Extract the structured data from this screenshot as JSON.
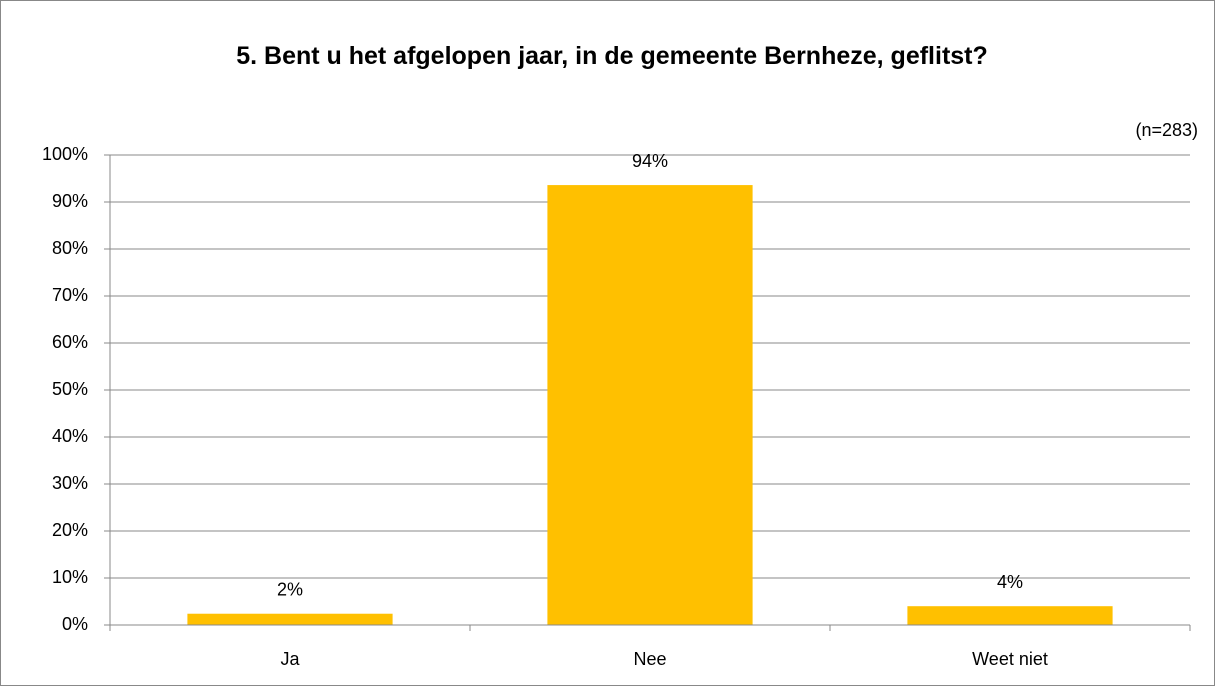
{
  "chart_data": {
    "type": "bar",
    "title": "5. Bent u het afgelopen jaar, in de gemeente Bernheze, geflitst?",
    "annotation": "(n=283)",
    "categories": [
      "Ja",
      "Nee",
      "Weet niet"
    ],
    "values": [
      2.4,
      93.6,
      4.0
    ],
    "value_labels": [
      "2%",
      "94%",
      "4%"
    ],
    "color": "#ffc000",
    "ylim": [
      0,
      100
    ],
    "yticks": [
      {
        "value": 0,
        "label": "0%"
      },
      {
        "value": 10,
        "label": "10%"
      },
      {
        "value": 20,
        "label": "20%"
      },
      {
        "value": 30,
        "label": "30%"
      },
      {
        "value": 40,
        "label": "40%"
      },
      {
        "value": 50,
        "label": "50%"
      },
      {
        "value": 60,
        "label": "60%"
      },
      {
        "value": 70,
        "label": "70%"
      },
      {
        "value": 80,
        "label": "80%"
      },
      {
        "value": 90,
        "label": "90%"
      },
      {
        "value": 100,
        "label": "100%"
      }
    ],
    "grid": true
  }
}
